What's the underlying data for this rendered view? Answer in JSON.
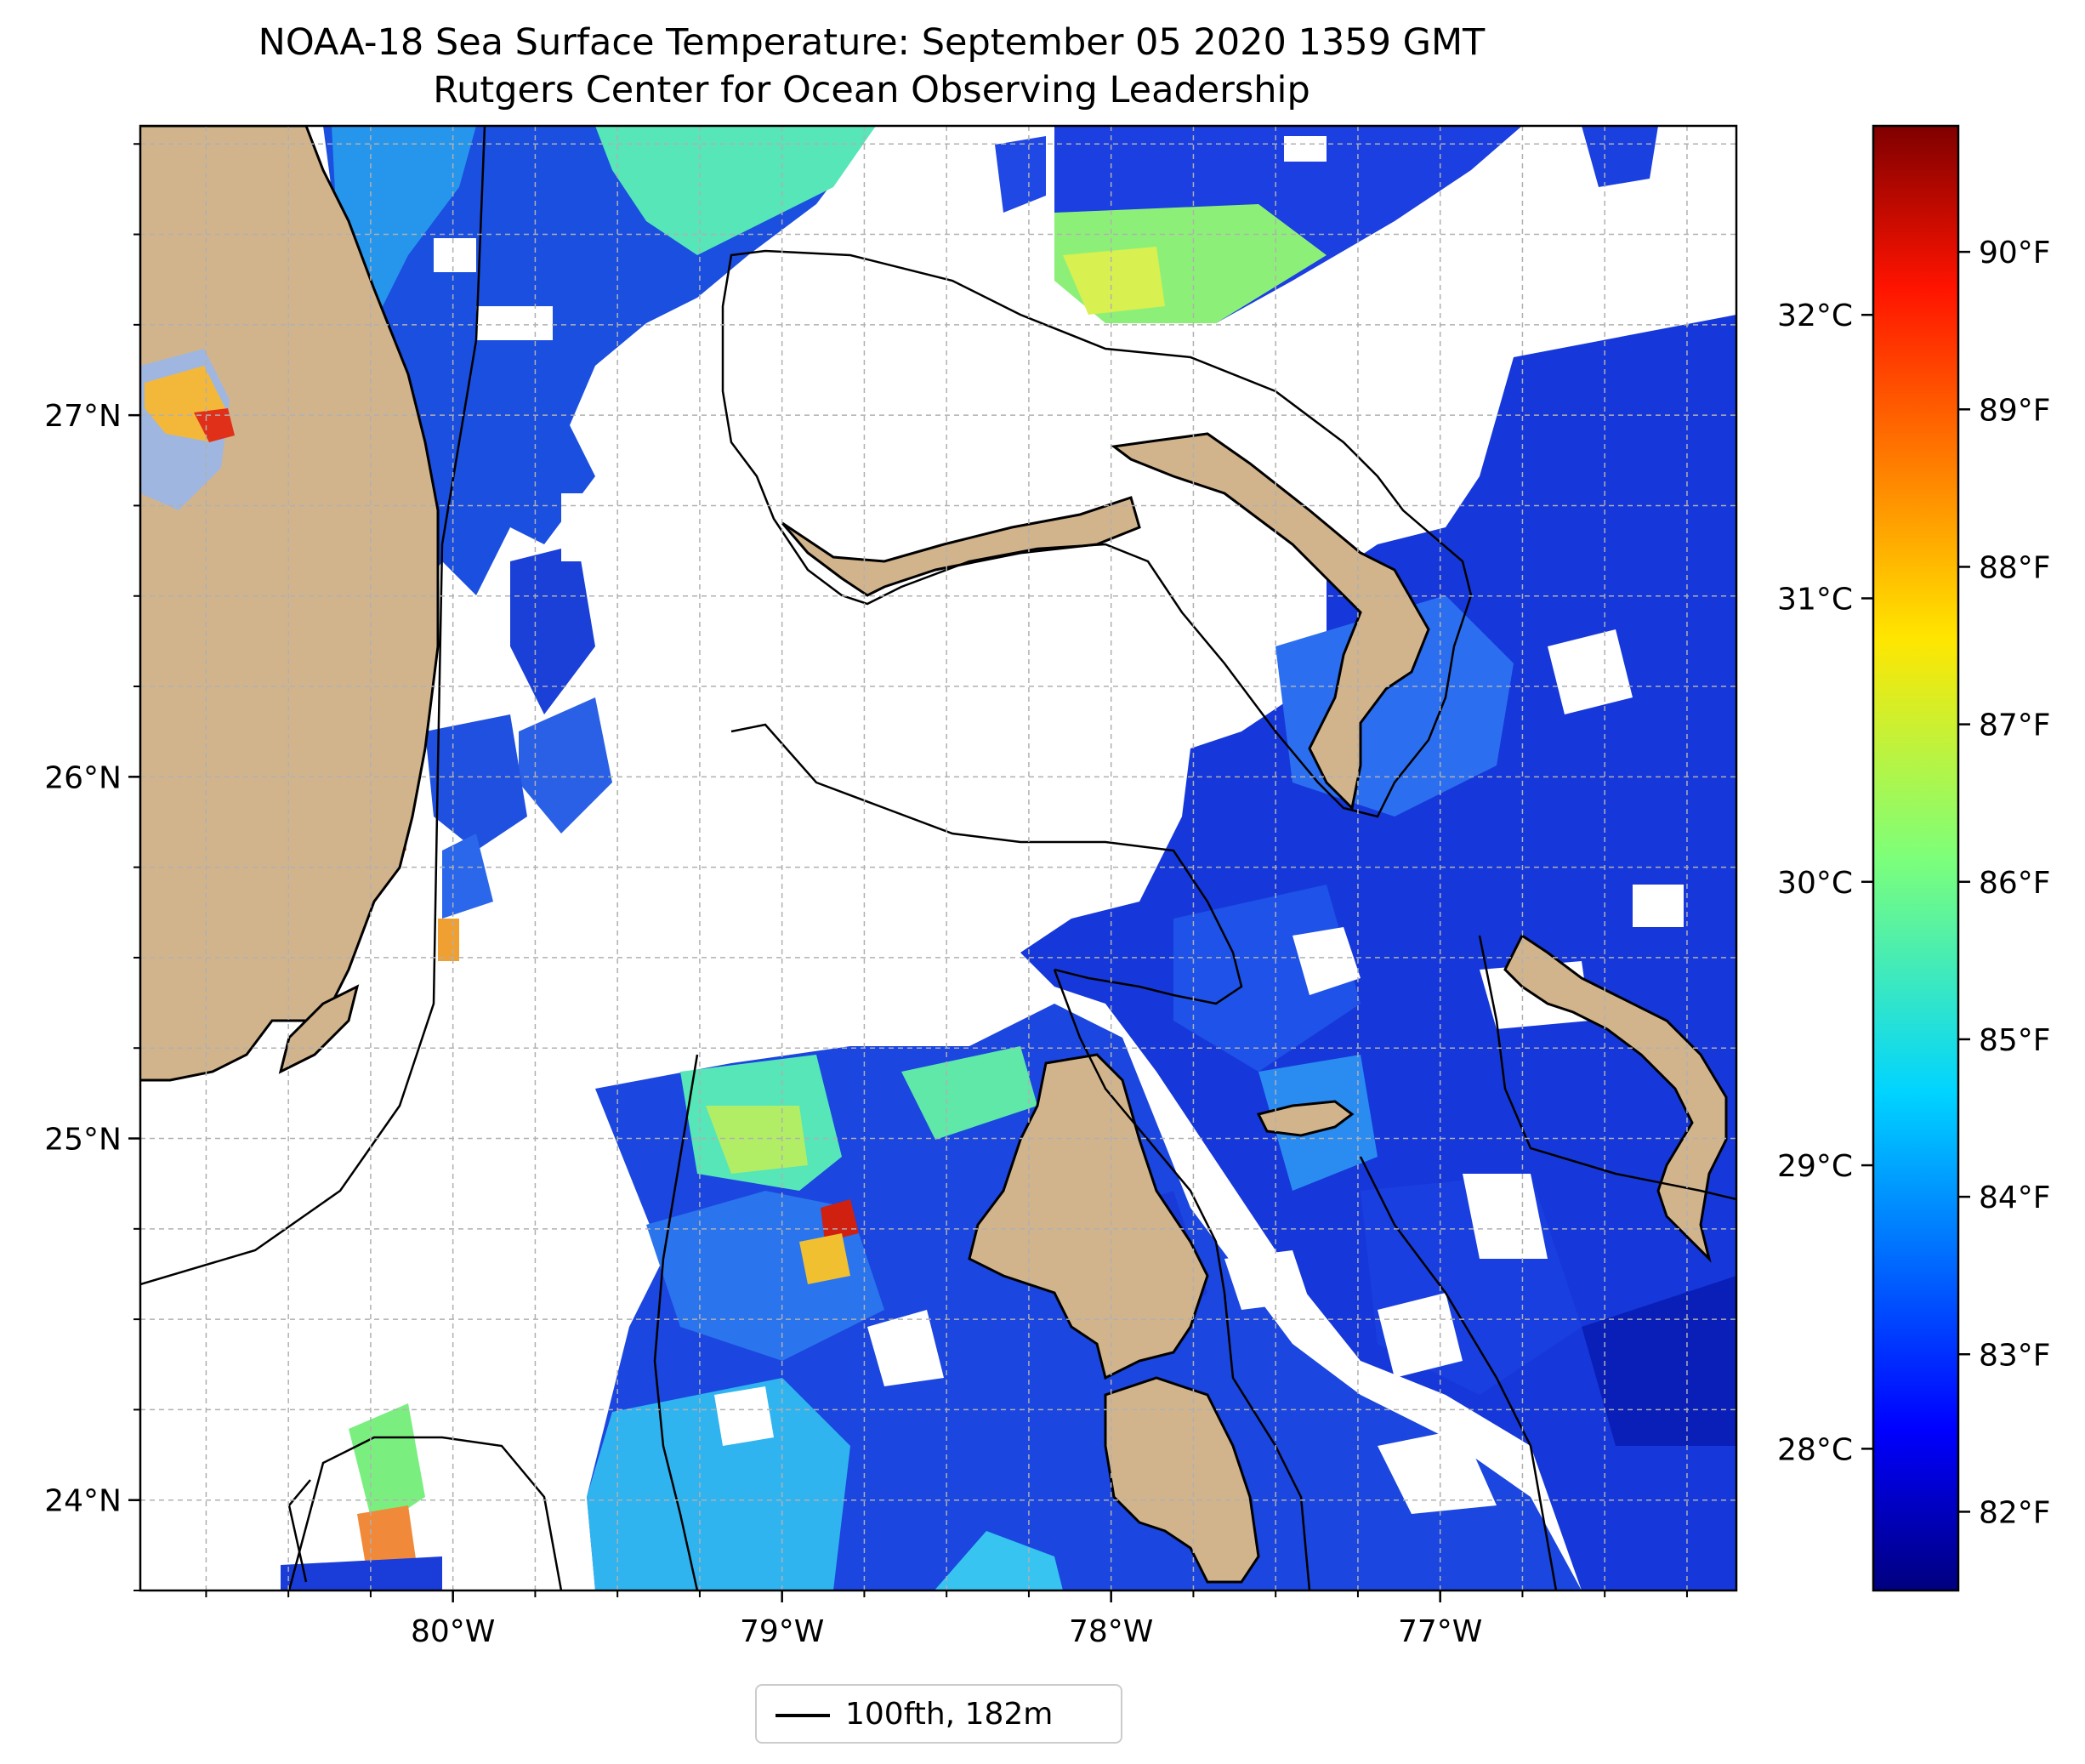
{
  "title": {
    "line1": "NOAA-18 Sea Surface Temperature: September 05 2020 1359 GMT",
    "line2": "Rutgers Center for Ocean Observing Leadership"
  },
  "map": {
    "lon_range": [
      -80.95,
      -76.1
    ],
    "lat_range": [
      23.75,
      27.8
    ],
    "lon_ticks": [
      "80°W",
      "79°W",
      "78°W",
      "77°W"
    ],
    "lat_ticks": [
      "27°N",
      "26°N",
      "25°N",
      "24°N"
    ],
    "grid": true,
    "land_color": "#d2b48c",
    "inland_water_color": "#9fb6e0",
    "missing_data_color": "#ffffff",
    "legend_placement": "bottom-center"
  },
  "colorbar": {
    "fahrenheit_ticks": [
      "82°F",
      "83°F",
      "84°F",
      "85°F",
      "86°F",
      "87°F",
      "88°F",
      "89°F",
      "90°F"
    ],
    "celsius_ticks": [
      "28°C",
      "29°C",
      "30°C",
      "31°C",
      "32°C"
    ],
    "range_f": [
      81.5,
      90.8
    ],
    "colormap": "jet"
  },
  "legend": {
    "label": "100fth, 182m"
  }
}
